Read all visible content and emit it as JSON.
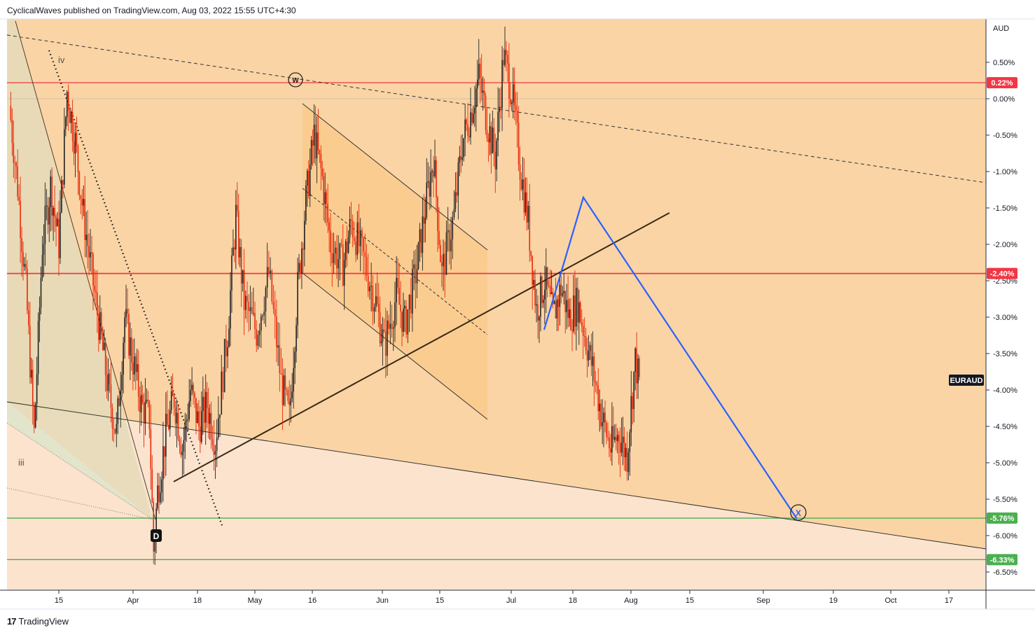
{
  "header": {
    "publisher": "CyclicalWaves published on TradingView.com, Aug 03, 2022 15:55 UTC+4:30"
  },
  "footer": {
    "brand": "TradingView",
    "logo_glyph": "17"
  },
  "chart_data": {
    "type": "candlestick",
    "symbol": "EURAUD",
    "currency": "AUD",
    "y_unit": "% change",
    "ylim": [
      -6.8,
      1.1
    ],
    "y_ticks": [
      "0.50%",
      "0.00%",
      "-0.50%",
      "-1.00%",
      "-1.50%",
      "-2.00%",
      "-2.50%",
      "-3.00%",
      "-3.50%",
      "-4.00%",
      "-4.50%",
      "-5.00%",
      "-5.50%",
      "-6.00%",
      "-6.50%"
    ],
    "x_ticks": [
      "15",
      "Apr",
      "18",
      "May",
      "16",
      "Jun",
      "15",
      "Jul",
      "18",
      "Aug",
      "15",
      "Sep",
      "19",
      "Oct",
      "17"
    ],
    "price_labels": [
      {
        "text": "0.22%",
        "value": 0.22,
        "color": "#f23645"
      },
      {
        "text": "-2.40%",
        "value": -2.4,
        "color": "#f23645"
      },
      {
        "text": "-5.76%",
        "value": -5.76,
        "color": "#4caf50"
      },
      {
        "text": "-6.33%",
        "value": -6.33,
        "color": "#4caf50"
      }
    ],
    "wave_labels": [
      "iv",
      "iii",
      "W",
      "D",
      "X"
    ],
    "close_path": [
      [
        "2022-03-03",
        -0.1
      ],
      [
        "2022-03-05",
        -1.2
      ],
      [
        "2022-03-07",
        -2.6
      ],
      [
        "2022-03-09",
        -4.6
      ],
      [
        "2022-03-11",
        -2.0
      ],
      [
        "2022-03-13",
        -1.2
      ],
      [
        "2022-03-15",
        -2.0
      ],
      [
        "2022-03-17",
        0.1
      ],
      [
        "2022-03-19",
        -0.6
      ],
      [
        "2022-03-21",
        -1.6
      ],
      [
        "2022-03-23",
        -2.4
      ],
      [
        "2022-03-25",
        -3.2
      ],
      [
        "2022-03-27",
        -4.0
      ],
      [
        "2022-03-29",
        -4.6
      ],
      [
        "2022-03-31",
        -3.0
      ],
      [
        "2022-04-02",
        -3.6
      ],
      [
        "2022-04-04",
        -4.2
      ],
      [
        "2022-04-06",
        -4.4
      ],
      [
        "2022-04-07",
        -6.2
      ],
      [
        "2022-04-08",
        -5.4
      ],
      [
        "2022-04-10",
        -4.6
      ],
      [
        "2022-04-12",
        -4.1
      ],
      [
        "2022-04-14",
        -4.8
      ],
      [
        "2022-04-16",
        -4.0
      ],
      [
        "2022-04-18",
        -4.5
      ],
      [
        "2022-04-20",
        -4.2
      ],
      [
        "2022-04-22",
        -4.7
      ],
      [
        "2022-04-25",
        -3.2
      ],
      [
        "2022-04-27",
        -1.6
      ],
      [
        "2022-04-29",
        -2.8
      ],
      [
        "2022-05-02",
        -3.2
      ],
      [
        "2022-05-05",
        -2.4
      ],
      [
        "2022-05-08",
        -3.9
      ],
      [
        "2022-05-10",
        -4.4
      ],
      [
        "2022-05-12",
        -2.6
      ],
      [
        "2022-05-14",
        -1.4
      ],
      [
        "2022-05-16",
        -0.5
      ],
      [
        "2022-05-18",
        -1.1
      ],
      [
        "2022-05-20",
        -2.0
      ],
      [
        "2022-05-23",
        -2.3
      ],
      [
        "2022-05-25",
        -1.7
      ],
      [
        "2022-05-28",
        -2.2
      ],
      [
        "2022-05-31",
        -2.8
      ],
      [
        "2022-06-02",
        -3.4
      ],
      [
        "2022-06-05",
        -2.7
      ],
      [
        "2022-06-07",
        -3.1
      ],
      [
        "2022-06-10",
        -2.3
      ],
      [
        "2022-06-12",
        -1.5
      ],
      [
        "2022-06-14",
        -0.8
      ],
      [
        "2022-06-16",
        -2.4
      ],
      [
        "2022-06-19",
        -1.6
      ],
      [
        "2022-06-21",
        -0.6
      ],
      [
        "2022-06-23",
        -0.2
      ],
      [
        "2022-06-25",
        0.3
      ],
      [
        "2022-06-27",
        -0.3
      ],
      [
        "2022-06-29",
        -0.8
      ],
      [
        "2022-07-01",
        0.6
      ],
      [
        "2022-07-03",
        0.1
      ],
      [
        "2022-07-05",
        -0.9
      ],
      [
        "2022-07-07",
        -1.7
      ],
      [
        "2022-07-09",
        -2.9
      ],
      [
        "2022-07-11",
        -2.5
      ],
      [
        "2022-07-13",
        -3.0
      ],
      [
        "2022-07-15",
        -2.6
      ],
      [
        "2022-07-17",
        -3.0
      ],
      [
        "2022-07-19",
        -2.8
      ],
      [
        "2022-07-21",
        -3.3
      ],
      [
        "2022-07-23",
        -3.8
      ],
      [
        "2022-07-25",
        -4.4
      ],
      [
        "2022-07-27",
        -4.8
      ],
      [
        "2022-07-29",
        -4.6
      ],
      [
        "2022-07-31",
        -4.9
      ],
      [
        "2022-08-01",
        -4.2
      ],
      [
        "2022-08-02",
        -3.6
      ],
      [
        "2022-08-03",
        -3.9
      ]
    ],
    "horizontal_levels": [
      0.22,
      -2.4,
      -5.76,
      -6.33,
      0.0
    ]
  }
}
